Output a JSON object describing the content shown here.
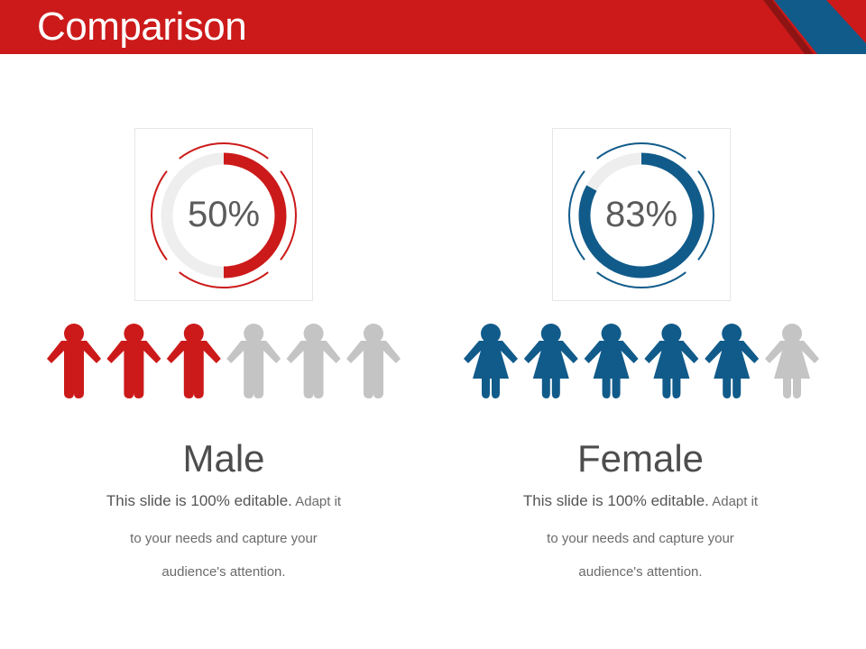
{
  "header": {
    "title": "Comparison",
    "colors": {
      "red": "#cc1a1a",
      "blue": "#115b8a"
    }
  },
  "groups": [
    {
      "id": "male",
      "percent_label": "50%",
      "percent": 50,
      "figures_total": 6,
      "figures_filled": 3,
      "figure_icon": "male-person-icon",
      "accent": "#cc1a1a",
      "title": "Male",
      "desc_lead": "This slide is 100% editable.",
      "desc_line1_rest": " Adapt it",
      "desc_line2": "to your needs and capture your",
      "desc_line3": "audience's attention."
    },
    {
      "id": "female",
      "percent_label": "83%",
      "percent": 83,
      "figures_total": 6,
      "figures_filled": 5,
      "figure_icon": "female-person-icon",
      "accent": "#115b8a",
      "title": "Female",
      "desc_lead": "This slide is 100% editable.",
      "desc_line1_rest": " Adapt it",
      "desc_line2": "to your needs and capture your",
      "desc_line3": "audience's attention."
    }
  ],
  "inactive_color": "#c4c4c4"
}
